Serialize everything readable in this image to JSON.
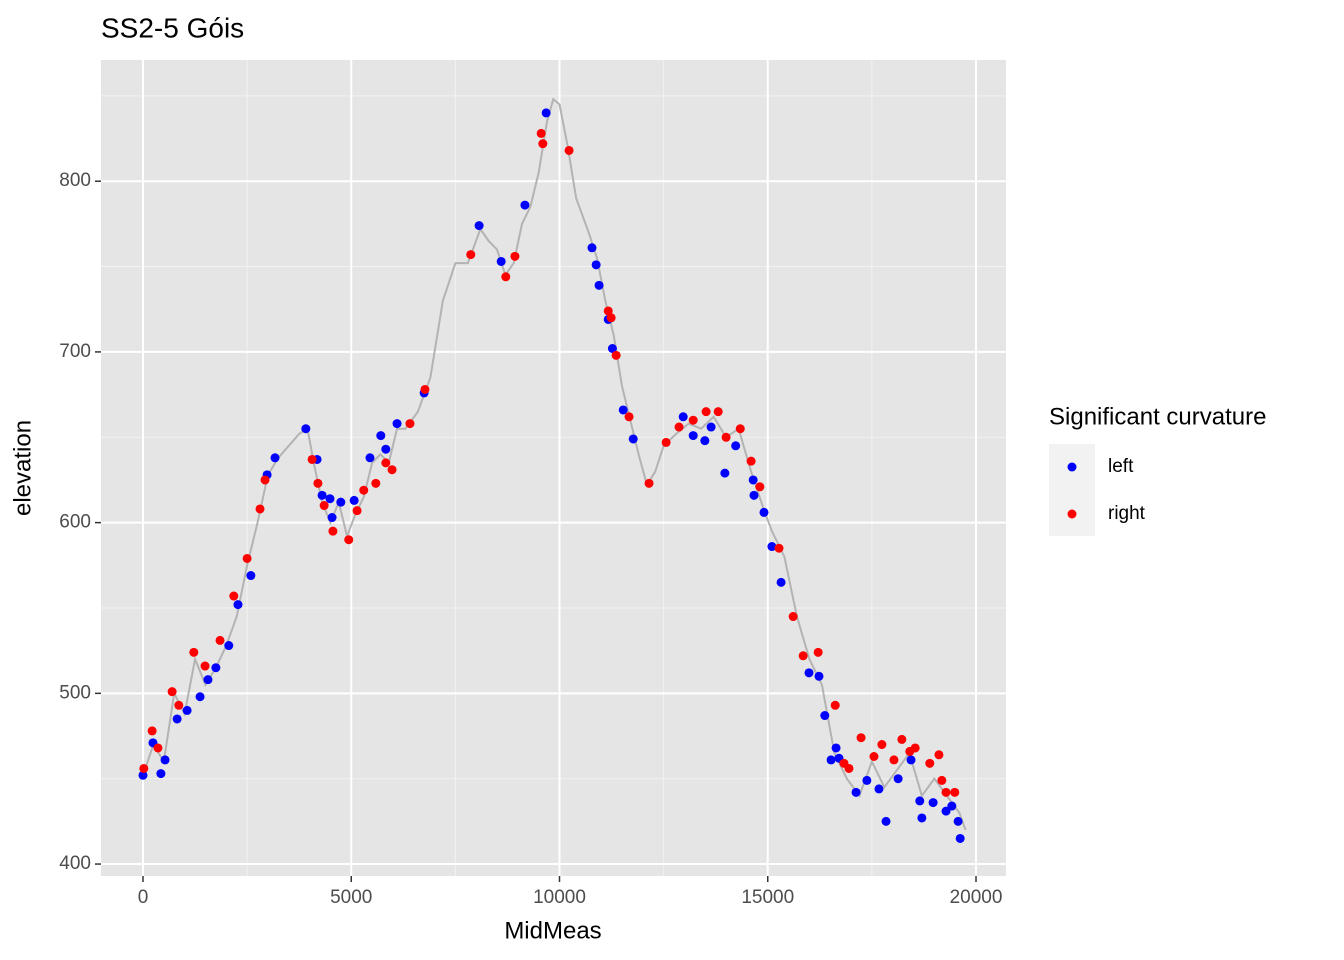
{
  "chart_data": {
    "type": "scatter",
    "title": "SS2-5 Góis",
    "x_label": "MidMeas",
    "y_label": "elevation",
    "legend_title": "Significant curvature",
    "legend_position": "right",
    "grid": true,
    "xlim": [
      -1008,
      20720
    ],
    "ylim": [
      393,
      871
    ],
    "xticks": [
      0,
      5000,
      10000,
      15000,
      20000
    ],
    "yticks": [
      400,
      500,
      600,
      700,
      800
    ],
    "line": {
      "color": "#b3b3b3",
      "x": [
        0,
        250,
        500,
        750,
        1000,
        1250,
        1500,
        1750,
        2000,
        2250,
        2500,
        2750,
        3000,
        3250,
        3500,
        3750,
        3950,
        4100,
        4300,
        4500,
        4700,
        4900,
        5100,
        5300,
        5500,
        5700,
        5900,
        6100,
        6300,
        6600,
        6900,
        7200,
        7500,
        7800,
        8100,
        8300,
        8500,
        8700,
        8900,
        9100,
        9300,
        9500,
        9700,
        9850,
        10000,
        10200,
        10400,
        10700,
        10900,
        11100,
        11300,
        11500,
        11700,
        11900,
        12100,
        12300,
        12500,
        12800,
        13100,
        13400,
        13700,
        14000,
        14300,
        14600,
        14900,
        15100,
        15400,
        15700,
        16000,
        16300,
        16600,
        16900,
        17200,
        17500,
        17800,
        18100,
        18400,
        18700,
        19000,
        19300,
        19600,
        19750
      ],
      "values": [
        452,
        470,
        460,
        500,
        488,
        520,
        505,
        515,
        528,
        545,
        575,
        600,
        628,
        638,
        645,
        652,
        655,
        635,
        612,
        600,
        612,
        592,
        605,
        615,
        635,
        640,
        635,
        655,
        655,
        665,
        685,
        730,
        752,
        752,
        772,
        765,
        760,
        745,
        752,
        775,
        785,
        805,
        835,
        848,
        845,
        820,
        790,
        770,
        755,
        730,
        710,
        680,
        660,
        640,
        622,
        630,
        645,
        652,
        658,
        655,
        662,
        650,
        655,
        630,
        608,
        595,
        580,
        545,
        520,
        505,
        465,
        450,
        440,
        460,
        445,
        455,
        465,
        440,
        450,
        440,
        430,
        420
      ]
    },
    "series": [
      {
        "name": "left",
        "color": "#0000ff",
        "x": [
          0,
          240,
          430,
          530,
          820,
          1060,
          1370,
          1560,
          1750,
          2060,
          2280,
          2590,
          2980,
          3170,
          3910,
          4180,
          4300,
          4490,
          4540,
          4750,
          5070,
          5450,
          5710,
          5830,
          6100,
          6750,
          8070,
          8600,
          9170,
          9680,
          10780,
          10880,
          10950,
          11170,
          11270,
          11530,
          11770,
          12970,
          13210,
          13490,
          13640,
          13970,
          14230,
          14650,
          14670,
          14910,
          15100,
          15320,
          15990,
          16230,
          16370,
          16520,
          16640,
          16710,
          17120,
          17380,
          17670,
          17840,
          18130,
          18440,
          18650,
          18700,
          18970,
          19280,
          19420,
          19570,
          19620
        ],
        "values": [
          452,
          471,
          453,
          461,
          485,
          490,
          498,
          508,
          515,
          528,
          552,
          569,
          628,
          638,
          655,
          637,
          616,
          614,
          603,
          612,
          613,
          638,
          651,
          643,
          658,
          676,
          774,
          753,
          786,
          840,
          761,
          751,
          739,
          719,
          702,
          666,
          649,
          662,
          651,
          648,
          656,
          629,
          645,
          625,
          616,
          606,
          586,
          565,
          512,
          510,
          487,
          461,
          468,
          462,
          442,
          449,
          444,
          425,
          450,
          461,
          437,
          427,
          436,
          431,
          434,
          425,
          415
        ]
      },
      {
        "name": "right",
        "color": "#ff0000",
        "x": [
          20,
          220,
          360,
          700,
          860,
          1220,
          1490,
          1850,
          2180,
          2500,
          2810,
          2930,
          4060,
          4200,
          4350,
          4560,
          4940,
          5140,
          5300,
          5590,
          5830,
          5980,
          6410,
          6770,
          7870,
          8710,
          8930,
          9560,
          9600,
          10230,
          11170,
          11240,
          11360,
          11670,
          12150,
          12560,
          12870,
          13210,
          13520,
          13810,
          14000,
          14340,
          14600,
          14810,
          15270,
          15610,
          15850,
          16210,
          16620,
          16830,
          16950,
          17240,
          17550,
          17740,
          18030,
          18220,
          18410,
          18540,
          18890,
          19110,
          19180,
          19280,
          19490
        ],
        "values": [
          456,
          478,
          468,
          501,
          493,
          524,
          516,
          531,
          557,
          579,
          608,
          625,
          637,
          623,
          610,
          595,
          590,
          607,
          619,
          623,
          635,
          631,
          658,
          678,
          757,
          744,
          756,
          828,
          822,
          818,
          724,
          720,
          698,
          662,
          623,
          647,
          656,
          660,
          665,
          665,
          650,
          655,
          636,
          621,
          585,
          545,
          522,
          524,
          493,
          459,
          456,
          474,
          463,
          470,
          461,
          473,
          466,
          468,
          459,
          464,
          449,
          442,
          442
        ]
      }
    ]
  }
}
